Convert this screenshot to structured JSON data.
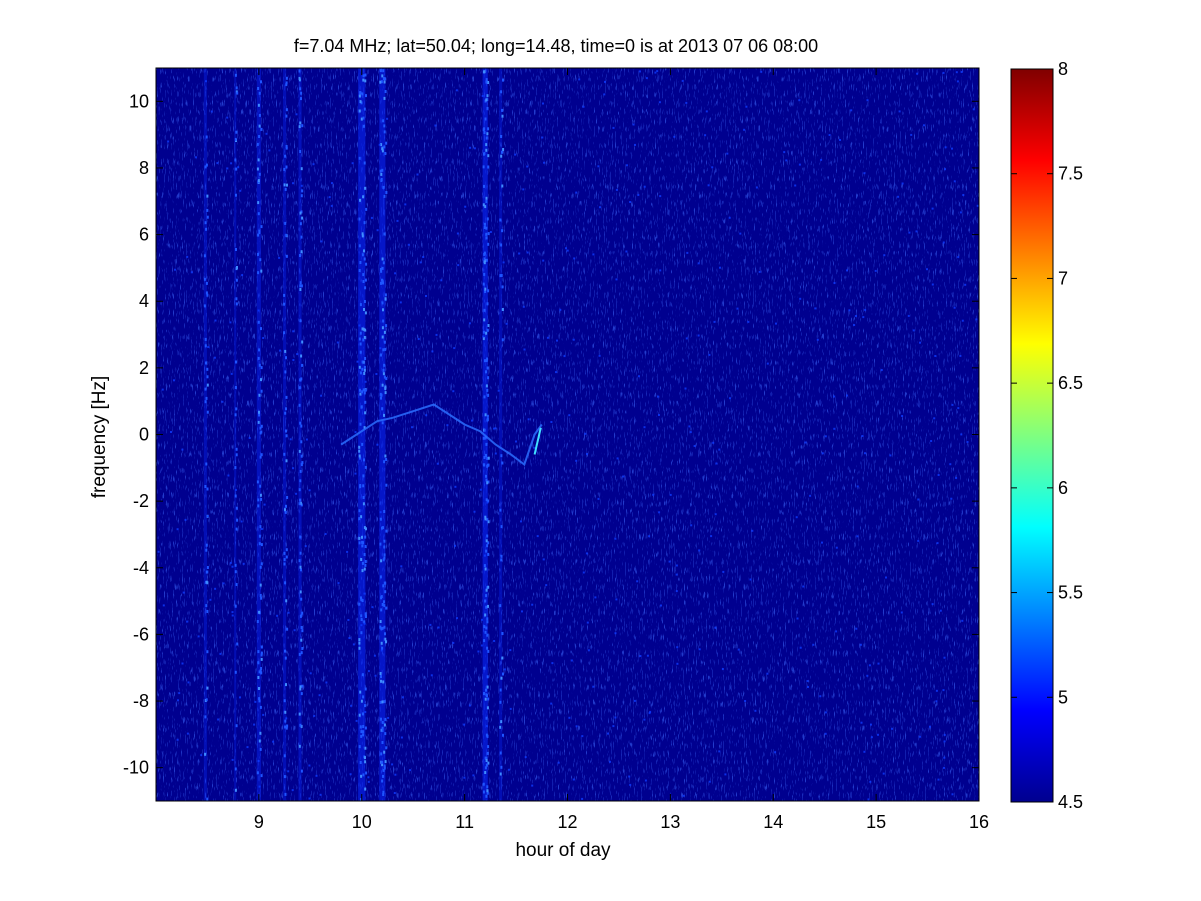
{
  "chart_data": {
    "type": "heatmap",
    "title": "f=7.04 MHz;  lat=50.04; long=14.48, time=0 is at 2013 07 06 08:00",
    "xlabel": "hour of day",
    "ylabel": "frequency [Hz]",
    "xlim": [
      8,
      16
    ],
    "ylim": [
      -11,
      11
    ],
    "x_ticks": [
      "9",
      "10",
      "11",
      "12",
      "13",
      "14",
      "15",
      "16"
    ],
    "x_tick_values": [
      9,
      10,
      11,
      12,
      13,
      14,
      15,
      16
    ],
    "y_ticks": [
      "10",
      "8",
      "6",
      "4",
      "2",
      "0",
      "-2",
      "-4",
      "-6",
      "-8",
      "-10"
    ],
    "y_tick_values": [
      10,
      8,
      6,
      4,
      2,
      0,
      -2,
      -4,
      -6,
      -8,
      -10
    ],
    "colorbar": {
      "colormap": "jet",
      "clim": [
        4.5,
        8
      ],
      "ticks": [
        "8",
        "7.5",
        "7",
        "6.5",
        "6",
        "5.5",
        "5",
        "4.5"
      ],
      "tick_values": [
        8,
        7.5,
        7,
        6.5,
        6,
        5.5,
        5,
        4.5
      ]
    },
    "background_value": 4.5,
    "vertical_bands": [
      {
        "hour": 8.48,
        "width_h": 0.03,
        "intensity": 0.25
      },
      {
        "hour": 8.77,
        "width_h": 0.02,
        "intensity": 0.2
      },
      {
        "hour": 9.0,
        "width_h": 0.04,
        "intensity": 0.45
      },
      {
        "hour": 9.25,
        "width_h": 0.03,
        "intensity": 0.3
      },
      {
        "hour": 9.4,
        "width_h": 0.03,
        "intensity": 0.4
      },
      {
        "hour": 10.0,
        "width_h": 0.07,
        "intensity": 0.8
      },
      {
        "hour": 10.2,
        "width_h": 0.06,
        "intensity": 0.75
      },
      {
        "hour": 11.2,
        "width_h": 0.05,
        "intensity": 0.85
      },
      {
        "hour": 11.35,
        "width_h": 0.03,
        "intensity": 0.2
      }
    ],
    "trace": [
      {
        "x": 9.8,
        "y": -0.3
      },
      {
        "x": 9.95,
        "y": 0.0
      },
      {
        "x": 10.15,
        "y": 0.4
      },
      {
        "x": 10.3,
        "y": 0.5
      },
      {
        "x": 10.5,
        "y": 0.7
      },
      {
        "x": 10.7,
        "y": 0.9
      },
      {
        "x": 10.85,
        "y": 0.6
      },
      {
        "x": 11.0,
        "y": 0.3
      },
      {
        "x": 11.15,
        "y": 0.1
      },
      {
        "x": 11.3,
        "y": -0.3
      },
      {
        "x": 11.45,
        "y": -0.6
      },
      {
        "x": 11.58,
        "y": -0.9
      },
      {
        "x": 11.68,
        "y": 0.0
      },
      {
        "x": 11.75,
        "y": 0.3
      }
    ]
  }
}
